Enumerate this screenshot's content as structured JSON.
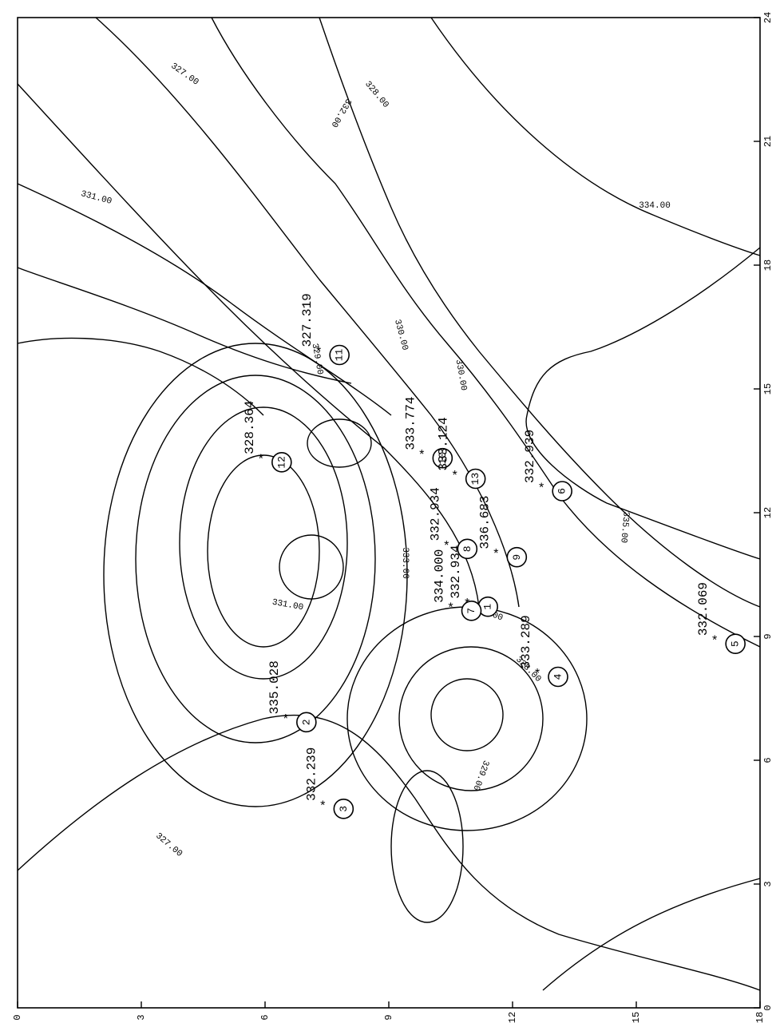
{
  "chart_data": {
    "type": "contour",
    "title": "",
    "xlabel": "",
    "ylabel": "",
    "xlim": [
      0,
      24
    ],
    "ylim": [
      0,
      18
    ],
    "grid": false,
    "x_ticks": [
      "0",
      "3",
      "6",
      "9",
      "12",
      "15",
      "18",
      "21",
      "24"
    ],
    "y_ticks": [
      "0",
      "3",
      "6",
      "9",
      "12",
      "15",
      "18"
    ],
    "contour_labels": [
      "327.00",
      "328.00",
      "329.00",
      "330.00",
      "331.00",
      "332.00",
      "333.00",
      "334.00",
      "335.00",
      "336.00"
    ],
    "wells": [
      {
        "id": "1",
        "x": 9.8,
        "y": 10.9,
        "value": "332.934"
      },
      {
        "id": "2",
        "x": 7.0,
        "y": 6.5,
        "value": "335.028"
      },
      {
        "id": "3",
        "x": 4.9,
        "y": 7.4,
        "value": "332.239"
      },
      {
        "id": "4",
        "x": 8.1,
        "y": 12.6,
        "value": "333.289"
      },
      {
        "id": "5",
        "x": 8.9,
        "y": 16.9,
        "value": "332.069"
      },
      {
        "id": "6",
        "x": 12.6,
        "y": 12.7,
        "value": "332.939"
      },
      {
        "id": "7",
        "x": 9.7,
        "y": 10.5,
        "value": "334.000"
      },
      {
        "id": "8",
        "x": 11.2,
        "y": 10.4,
        "value": "332.934"
      },
      {
        "id": "9",
        "x": 11.0,
        "y": 11.6,
        "value": "336.683"
      },
      {
        "id": "10",
        "x": 13.4,
        "y": 9.8,
        "value": "333.774"
      },
      {
        "id": "11",
        "x": 15.9,
        "y": 7.3,
        "value": "327.319"
      },
      {
        "id": "12",
        "x": 13.3,
        "y": 5.9,
        "value": "328.364"
      },
      {
        "id": "13",
        "x": 12.9,
        "y": 10.6,
        "value": "333.124"
      }
    ]
  }
}
